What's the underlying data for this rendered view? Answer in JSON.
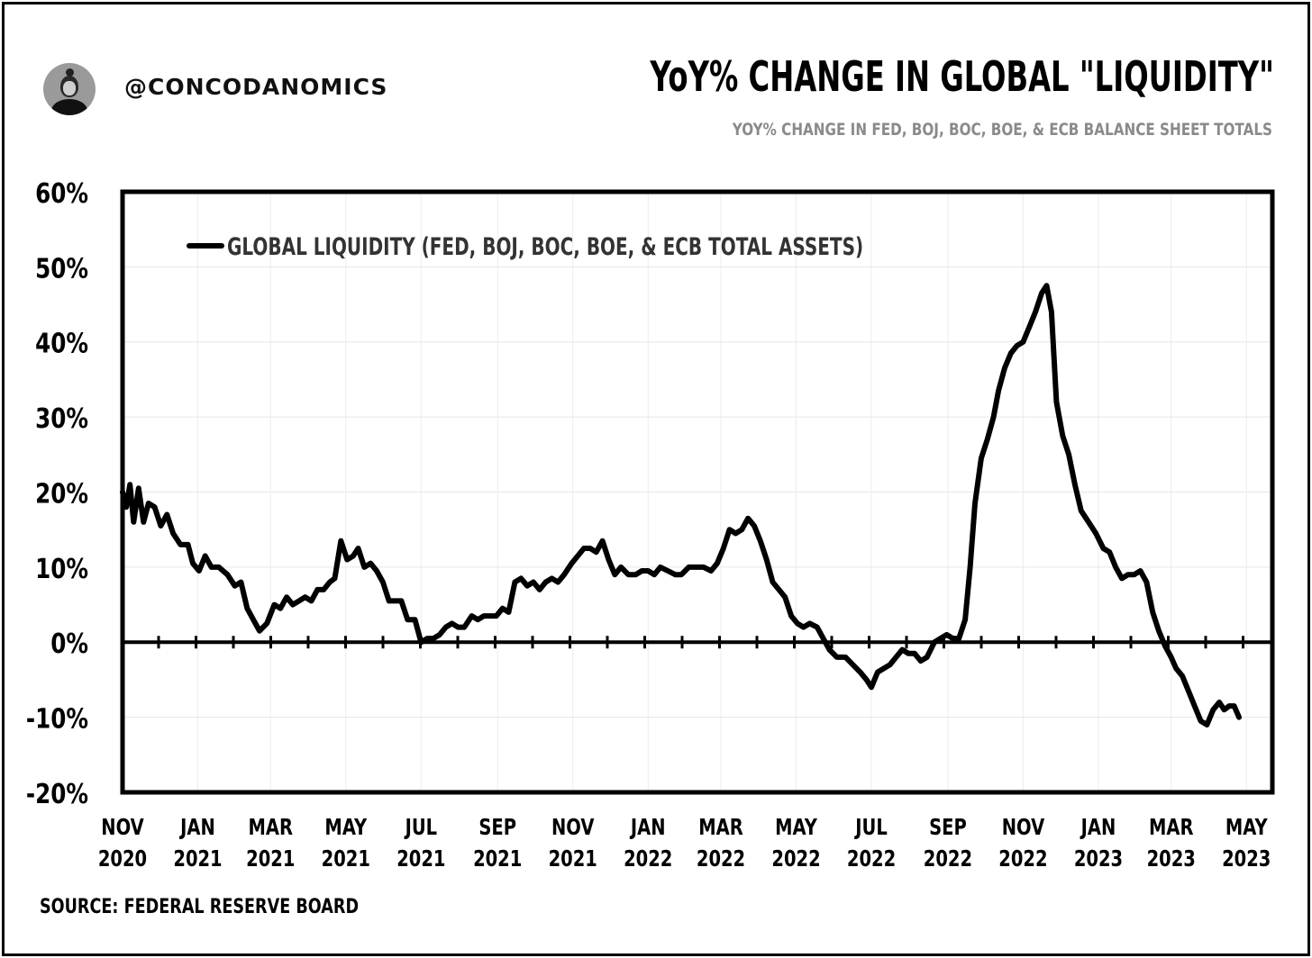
{
  "header": {
    "handle": "@CONCODANOMICS",
    "title": "YoY% CHANGE IN GLOBAL \"LIQUIDITY\"",
    "subtitle": "YOY% CHANGE IN FED, BOJ, BOC, BOE, & ECB BALANCE SHEET TOTALS"
  },
  "footer": {
    "source": "SOURCE: FEDERAL RESERVE BOARD"
  },
  "chart_data": {
    "type": "line",
    "title": "YoY% CHANGE IN GLOBAL \"LIQUIDITY\"",
    "subtitle": "YOY% CHANGE IN FED, BOJ, BOC, BOE, & ECB BALANCE SHEET TOTALS",
    "xlabel": "",
    "ylabel": "",
    "ylim": [
      -20,
      60
    ],
    "xlim": [
      "2020-11-01",
      "2023-05-22"
    ],
    "y_ticks": [
      "60%",
      "50%",
      "40%",
      "30%",
      "20%",
      "10%",
      "0%",
      "-10%",
      "-20%"
    ],
    "x_ticks": [
      {
        "date": "2020-11-01",
        "line1": "NOV",
        "line2": "2020"
      },
      {
        "date": "2021-01-01",
        "line1": "JAN",
        "line2": "2021"
      },
      {
        "date": "2021-03-01",
        "line1": "MAR",
        "line2": "2021"
      },
      {
        "date": "2021-05-01",
        "line1": "MAY",
        "line2": "2021"
      },
      {
        "date": "2021-07-01",
        "line1": "JUL",
        "line2": "2021"
      },
      {
        "date": "2021-09-01",
        "line1": "SEP",
        "line2": "2021"
      },
      {
        "date": "2021-11-01",
        "line1": "NOV",
        "line2": "2021"
      },
      {
        "date": "2022-01-01",
        "line1": "JAN",
        "line2": "2022"
      },
      {
        "date": "2022-03-01",
        "line1": "MAR",
        "line2": "2022"
      },
      {
        "date": "2022-05-01",
        "line1": "MAY",
        "line2": "2022"
      },
      {
        "date": "2022-07-01",
        "line1": "JUL",
        "line2": "2022"
      },
      {
        "date": "2022-09-01",
        "line1": "SEP",
        "line2": "2022"
      },
      {
        "date": "2022-11-01",
        "line1": "NOV",
        "line2": "2022"
      },
      {
        "date": "2023-01-01",
        "line1": "JAN",
        "line2": "2023"
      },
      {
        "date": "2023-03-01",
        "line1": "MAR",
        "line2": "2023"
      },
      {
        "date": "2023-05-01",
        "line1": "MAY",
        "line2": "2023"
      }
    ],
    "grid": true,
    "legend": "top-left",
    "line_color": "#000000",
    "series": [
      {
        "name": "GLOBAL LIQUIDITY (FED, BOJ, BOC, BOE, & ECB TOTAL ASSETS)",
        "points": [
          [
            "2020-11-01",
            20
          ],
          [
            "2020-11-04",
            18
          ],
          [
            "2020-11-07",
            21
          ],
          [
            "2020-11-10",
            16
          ],
          [
            "2020-11-14",
            20.5
          ],
          [
            "2020-11-18",
            16
          ],
          [
            "2020-11-22",
            18.5
          ],
          [
            "2020-11-27",
            18
          ],
          [
            "2020-12-02",
            15.5
          ],
          [
            "2020-12-07",
            17
          ],
          [
            "2020-12-12",
            14.5
          ],
          [
            "2020-12-18",
            13
          ],
          [
            "2020-12-24",
            13
          ],
          [
            "2020-12-28",
            10.5
          ],
          [
            "2021-01-02",
            9.5
          ],
          [
            "2021-01-07",
            11.5
          ],
          [
            "2021-01-12",
            10
          ],
          [
            "2021-01-18",
            10
          ],
          [
            "2021-01-25",
            9
          ],
          [
            "2021-01-31",
            7.5
          ],
          [
            "2021-02-05",
            8
          ],
          [
            "2021-02-10",
            4.5
          ],
          [
            "2021-02-15",
            3
          ],
          [
            "2021-02-20",
            1.5
          ],
          [
            "2021-02-26",
            2.5
          ],
          [
            "2021-03-04",
            5
          ],
          [
            "2021-03-09",
            4.5
          ],
          [
            "2021-03-14",
            6
          ],
          [
            "2021-03-19",
            5
          ],
          [
            "2021-03-24",
            5.5
          ],
          [
            "2021-03-29",
            6
          ],
          [
            "2021-04-03",
            5.5
          ],
          [
            "2021-04-08",
            7
          ],
          [
            "2021-04-13",
            7
          ],
          [
            "2021-04-18",
            8
          ],
          [
            "2021-04-22",
            8.5
          ],
          [
            "2021-04-27",
            13.5
          ],
          [
            "2021-05-02",
            11
          ],
          [
            "2021-05-07",
            11.5
          ],
          [
            "2021-05-11",
            12.5
          ],
          [
            "2021-05-16",
            10
          ],
          [
            "2021-05-21",
            10.5
          ],
          [
            "2021-05-26",
            9.5
          ],
          [
            "2021-05-31",
            8
          ],
          [
            "2021-06-05",
            5.5
          ],
          [
            "2021-06-10",
            5.5
          ],
          [
            "2021-06-15",
            5.5
          ],
          [
            "2021-06-20",
            3
          ],
          [
            "2021-06-26",
            3
          ],
          [
            "2021-07-01",
            0
          ],
          [
            "2021-07-06",
            0.5
          ],
          [
            "2021-07-11",
            0.5
          ],
          [
            "2021-07-16",
            1
          ],
          [
            "2021-07-21",
            2
          ],
          [
            "2021-07-26",
            2.5
          ],
          [
            "2021-07-31",
            2
          ],
          [
            "2021-08-05",
            2
          ],
          [
            "2021-08-11",
            3.5
          ],
          [
            "2021-08-16",
            3
          ],
          [
            "2021-08-21",
            3.5
          ],
          [
            "2021-08-26",
            3.5
          ],
          [
            "2021-08-31",
            3.5
          ],
          [
            "2021-09-05",
            4.5
          ],
          [
            "2021-09-10",
            4
          ],
          [
            "2021-09-15",
            8
          ],
          [
            "2021-09-20",
            8.5
          ],
          [
            "2021-09-25",
            7.5
          ],
          [
            "2021-09-30",
            8
          ],
          [
            "2021-10-05",
            7
          ],
          [
            "2021-10-10",
            8
          ],
          [
            "2021-10-15",
            8.5
          ],
          [
            "2021-10-20",
            8
          ],
          [
            "2021-10-25",
            9
          ],
          [
            "2021-10-31",
            10.5
          ],
          [
            "2021-11-05",
            11.5
          ],
          [
            "2021-11-10",
            12.5
          ],
          [
            "2021-11-15",
            12.5
          ],
          [
            "2021-11-20",
            12
          ],
          [
            "2021-11-25",
            13.5
          ],
          [
            "2021-11-30",
            11
          ],
          [
            "2021-12-05",
            9
          ],
          [
            "2021-12-10",
            10
          ],
          [
            "2021-12-16",
            9
          ],
          [
            "2021-12-22",
            9
          ],
          [
            "2021-12-27",
            9.5
          ],
          [
            "2022-01-01",
            9.5
          ],
          [
            "2022-01-06",
            9
          ],
          [
            "2022-01-11",
            10
          ],
          [
            "2022-01-17",
            9.5
          ],
          [
            "2022-01-23",
            9
          ],
          [
            "2022-01-28",
            9
          ],
          [
            "2022-02-03",
            10
          ],
          [
            "2022-02-09",
            10
          ],
          [
            "2022-02-15",
            10
          ],
          [
            "2022-02-21",
            9.5
          ],
          [
            "2022-02-26",
            10.5
          ],
          [
            "2022-03-03",
            12.5
          ],
          [
            "2022-03-08",
            15
          ],
          [
            "2022-03-13",
            14.5
          ],
          [
            "2022-03-18",
            15
          ],
          [
            "2022-03-23",
            16.5
          ],
          [
            "2022-03-28",
            15.5
          ],
          [
            "2022-04-02",
            13.5
          ],
          [
            "2022-04-07",
            11
          ],
          [
            "2022-04-12",
            8
          ],
          [
            "2022-04-17",
            7
          ],
          [
            "2022-04-22",
            6
          ],
          [
            "2022-04-27",
            3.5
          ],
          [
            "2022-05-02",
            2.5
          ],
          [
            "2022-05-07",
            2
          ],
          [
            "2022-05-12",
            2.5
          ],
          [
            "2022-05-18",
            2
          ],
          [
            "2022-05-23",
            0.5
          ],
          [
            "2022-05-28",
            -1
          ],
          [
            "2022-06-03",
            -2
          ],
          [
            "2022-06-10",
            -2
          ],
          [
            "2022-06-16",
            -3
          ],
          [
            "2022-06-22",
            -4
          ],
          [
            "2022-06-27",
            -5
          ],
          [
            "2022-07-01",
            -6
          ],
          [
            "2022-07-06",
            -4
          ],
          [
            "2022-07-11",
            -3.5
          ],
          [
            "2022-07-16",
            -3
          ],
          [
            "2022-07-21",
            -2
          ],
          [
            "2022-07-26",
            -1
          ],
          [
            "2022-07-31",
            -1.5
          ],
          [
            "2022-08-05",
            -1.5
          ],
          [
            "2022-08-10",
            -2.5
          ],
          [
            "2022-08-15",
            -2
          ],
          [
            "2022-08-21",
            0
          ],
          [
            "2022-08-26",
            0.5
          ],
          [
            "2022-08-31",
            1
          ],
          [
            "2022-09-05",
            0.5
          ],
          [
            "2022-09-10",
            0.5
          ],
          [
            "2022-09-15",
            3
          ],
          [
            "2022-09-19",
            10
          ],
          [
            "2022-09-23",
            18.5
          ],
          [
            "2022-09-28",
            24.5
          ],
          [
            "2022-10-03",
            27
          ],
          [
            "2022-10-08",
            30
          ],
          [
            "2022-10-12",
            33.5
          ],
          [
            "2022-10-17",
            36.5
          ],
          [
            "2022-10-22",
            38.5
          ],
          [
            "2022-10-27",
            39.5
          ],
          [
            "2022-11-01",
            40
          ],
          [
            "2022-11-06",
            42
          ],
          [
            "2022-11-11",
            44
          ],
          [
            "2022-11-16",
            46.5
          ],
          [
            "2022-11-20",
            47.5
          ],
          [
            "2022-11-24",
            44
          ],
          [
            "2022-11-28",
            32
          ],
          [
            "2022-12-03",
            27.5
          ],
          [
            "2022-12-08",
            25
          ],
          [
            "2022-12-13",
            21
          ],
          [
            "2022-12-18",
            17.5
          ],
          [
            "2022-12-24",
            16
          ],
          [
            "2022-12-30",
            14.5
          ],
          [
            "2023-01-05",
            12.5
          ],
          [
            "2023-01-10",
            12
          ],
          [
            "2023-01-15",
            10
          ],
          [
            "2023-01-20",
            8.5
          ],
          [
            "2023-01-25",
            9
          ],
          [
            "2023-01-30",
            9
          ],
          [
            "2023-02-04",
            9.5
          ],
          [
            "2023-02-09",
            8
          ],
          [
            "2023-02-14",
            4
          ],
          [
            "2023-02-19",
            1.5
          ],
          [
            "2023-02-24",
            -0.5
          ],
          [
            "2023-03-01",
            -2
          ],
          [
            "2023-03-05",
            -3.5
          ],
          [
            "2023-03-10",
            -4.5
          ],
          [
            "2023-03-15",
            -6.5
          ],
          [
            "2023-03-20",
            -8.5
          ],
          [
            "2023-03-25",
            -10.5
          ],
          [
            "2023-03-30",
            -11
          ],
          [
            "2023-04-04",
            -9
          ],
          [
            "2023-04-09",
            -8
          ],
          [
            "2023-04-13",
            -9
          ],
          [
            "2023-04-17",
            -8.5
          ],
          [
            "2023-04-21",
            -8.5
          ],
          [
            "2023-04-25",
            -10
          ]
        ]
      }
    ]
  }
}
